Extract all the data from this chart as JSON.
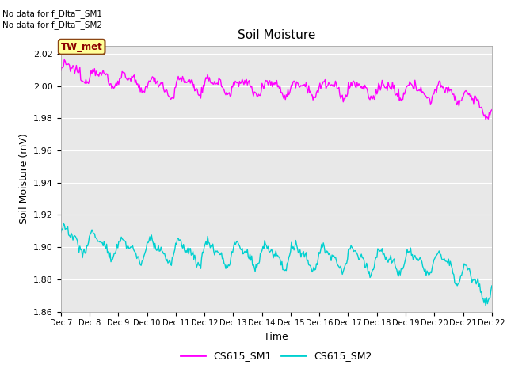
{
  "title": "Soil Moisture",
  "ylabel": "Soil Moisture (mV)",
  "xlabel": "Time",
  "ylim": [
    1.86,
    2.025
  ],
  "yticks": [
    1.86,
    1.88,
    1.9,
    1.92,
    1.94,
    1.96,
    1.98,
    2.0,
    2.02
  ],
  "bg_color": "#e8e8e8",
  "fig_color": "#ffffff",
  "line1_color": "#ff00ff",
  "line2_color": "#00d0d0",
  "no_data_text1": "No data for f_DltaT_SM1",
  "no_data_text2": "No data for f_DltaT_SM2",
  "box_label": "TW_met",
  "legend_labels": [
    "CS615_SM1",
    "CS615_SM2"
  ],
  "title_fontsize": 11,
  "axis_fontsize": 9,
  "tick_fontsize": 8
}
